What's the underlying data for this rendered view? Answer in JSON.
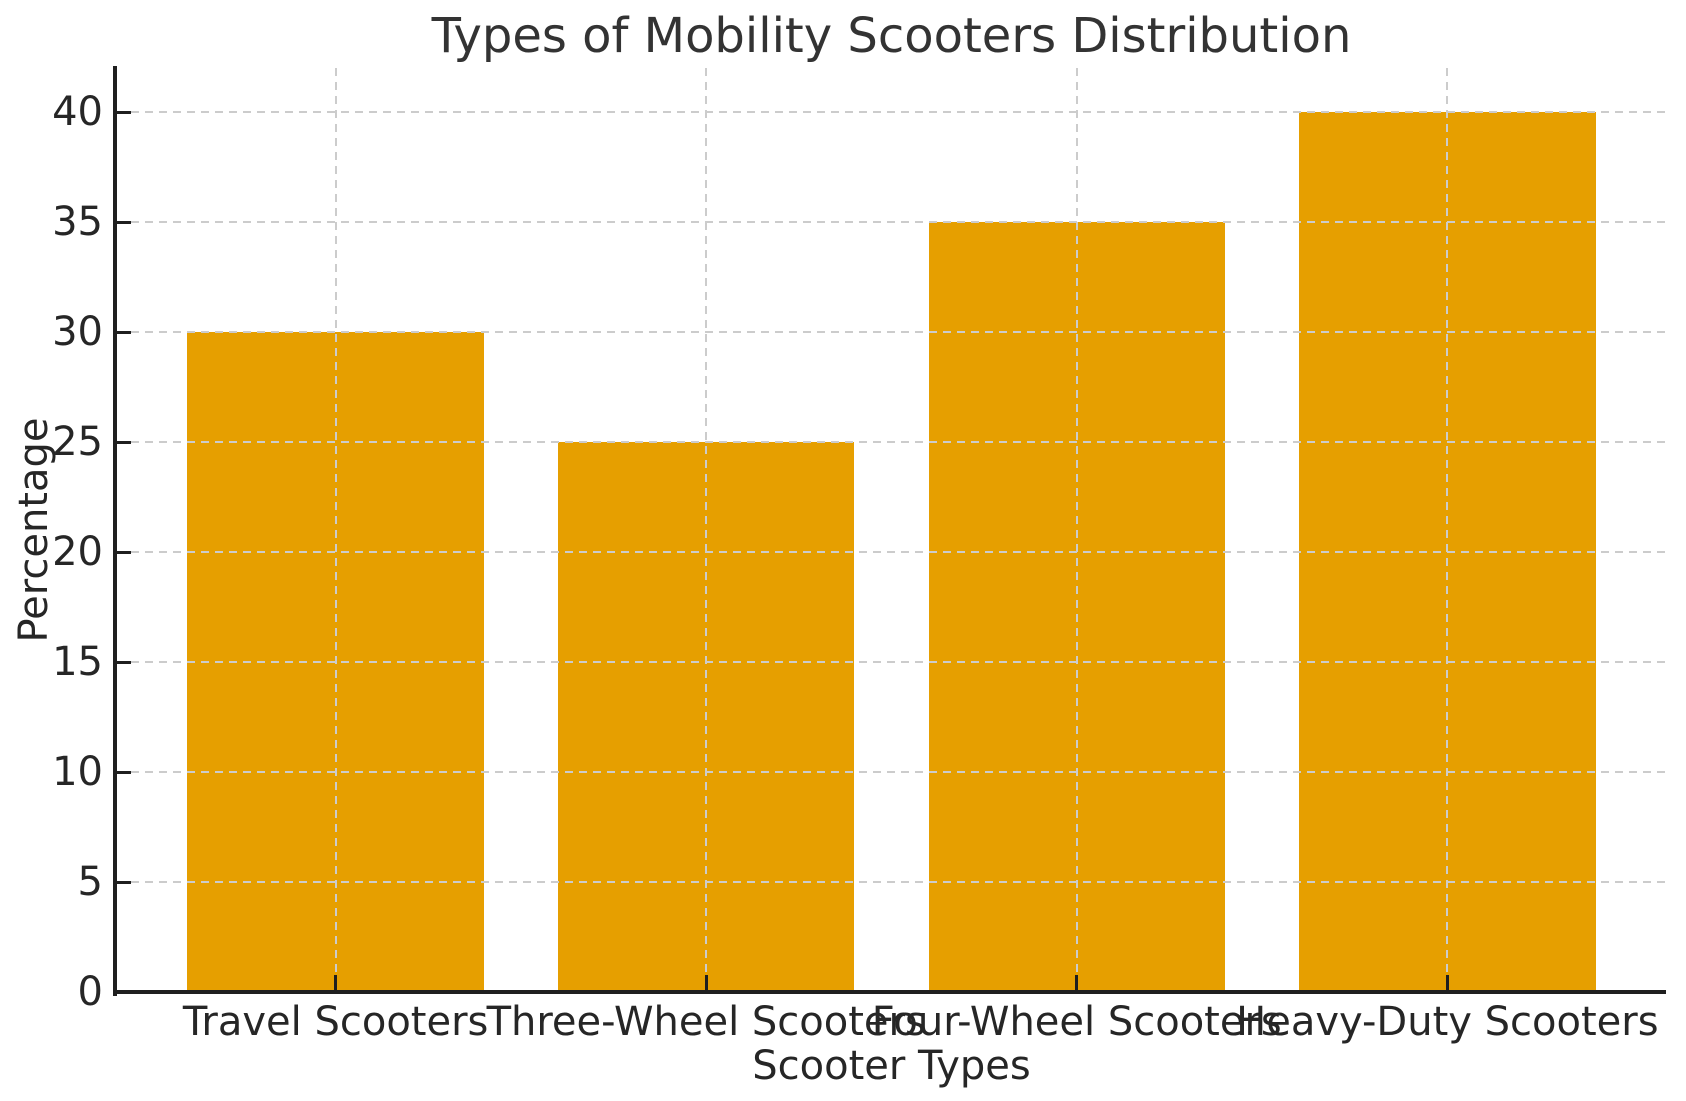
{
  "chart_data": {
    "type": "bar",
    "title": "Types of Mobility Scooters Distribution",
    "xlabel": "Scooter Types",
    "ylabel": "Percentage",
    "categories": [
      "Travel Scooters",
      "Three-Wheel Scooters",
      "Four-Wheel Scooters",
      "Heavy-Duty Scooters"
    ],
    "values": [
      30,
      25,
      35,
      40
    ],
    "ylim": [
      0,
      42
    ],
    "yticks": [
      0,
      5,
      10,
      15,
      20,
      25,
      30,
      35,
      40
    ],
    "bar_width_fraction": 0.8,
    "bar_color": "#E69F00",
    "grid": true,
    "grid_style": "dashed",
    "grid_color": "#CCCCCC",
    "grid_above_bars": true,
    "axis_color": "#262626",
    "title_color": "#333333",
    "background_color": "#FFFFFF",
    "legend": "none"
  }
}
